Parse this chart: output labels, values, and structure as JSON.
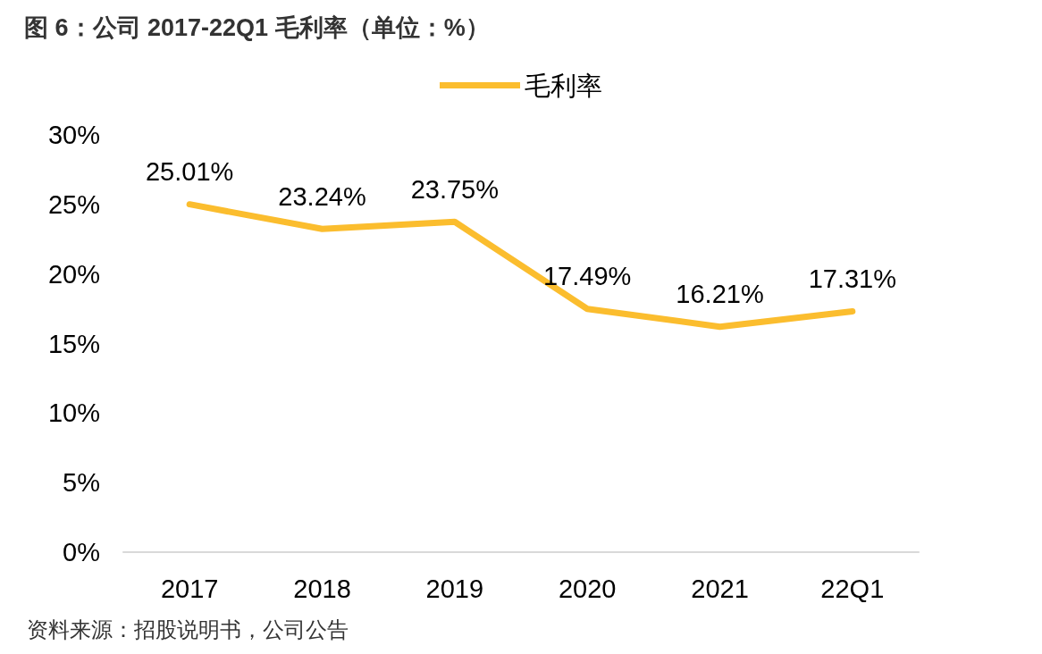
{
  "chart_data": {
    "type": "line",
    "title": "图 6：公司 2017-22Q1 毛利率（单位：%）",
    "annotations": [
      "资料来源：招股说明书，公司公告"
    ],
    "categories": [
      "2017",
      "2018",
      "2019",
      "2020",
      "2021",
      "22Q1"
    ],
    "series": [
      {
        "name": "毛利率",
        "color": "#fbbd2e",
        "values": [
          25.01,
          23.24,
          23.75,
          17.49,
          16.21,
          17.31
        ],
        "value_labels": [
          "25.01%",
          "23.24%",
          "23.75%",
          "17.49%",
          "16.21%",
          "17.31%"
        ]
      }
    ],
    "ylim": [
      0,
      30
    ],
    "yticks": [
      {
        "value": 0,
        "label": "0%"
      },
      {
        "value": 5,
        "label": "5%"
      },
      {
        "value": 10,
        "label": "10%"
      },
      {
        "value": 15,
        "label": "15%"
      },
      {
        "value": 20,
        "label": "20%"
      },
      {
        "value": 25,
        "label": "25%"
      },
      {
        "value": 30,
        "label": "30%"
      }
    ],
    "grid": false,
    "legend": "top",
    "marker": "none",
    "line_style": "solid"
  }
}
